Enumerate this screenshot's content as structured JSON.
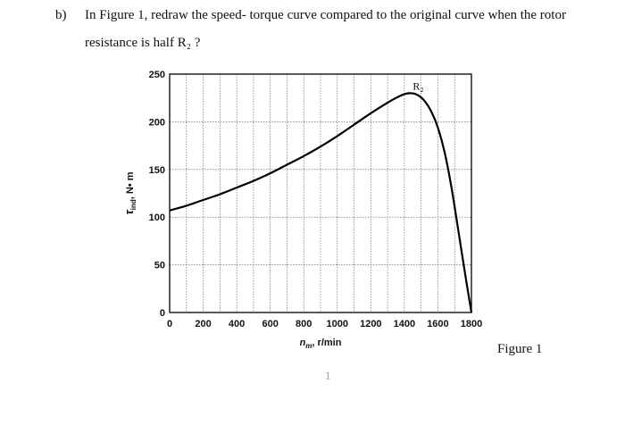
{
  "question": {
    "prefix": "b)",
    "line1": "In Figure 1, redraw the speed- torque curve compared to the original curve when the rotor",
    "line2": "resistance is half R₂ ?"
  },
  "figure_caption": "Figure 1",
  "page_number": "1",
  "chart_data": {
    "type": "line",
    "xlabel": "n_m, r/min",
    "xlabel_main": "n",
    "xlabel_sub": "m",
    "xlabel_rest": ", r/min",
    "ylabel": "τ_ind, N• m",
    "ylabel_main": "τ",
    "ylabel_sub": "ind",
    "ylabel_rest": ", N• m",
    "xlim": [
      0,
      1800
    ],
    "ylim": [
      0,
      250
    ],
    "x_ticks": [
      0,
      200,
      400,
      600,
      800,
      1000,
      1200,
      1400,
      1600,
      1800
    ],
    "y_ticks": [
      0,
      50,
      100,
      150,
      200,
      250
    ],
    "grid": true,
    "series": [
      {
        "name": "R₂",
        "color": "#000000",
        "x": [
          0,
          100,
          200,
          300,
          400,
          500,
          600,
          700,
          800,
          900,
          1000,
          1100,
          1200,
          1300,
          1350,
          1400,
          1440,
          1480,
          1520,
          1560,
          1600,
          1640,
          1680,
          1720,
          1760,
          1800
        ],
        "y": [
          107,
          112,
          118,
          124,
          131,
          138,
          146,
          155,
          164,
          174,
          185,
          197,
          209,
          220,
          225,
          229,
          230,
          228,
          222,
          211,
          194,
          168,
          132,
          88,
          43,
          0
        ]
      }
    ]
  }
}
